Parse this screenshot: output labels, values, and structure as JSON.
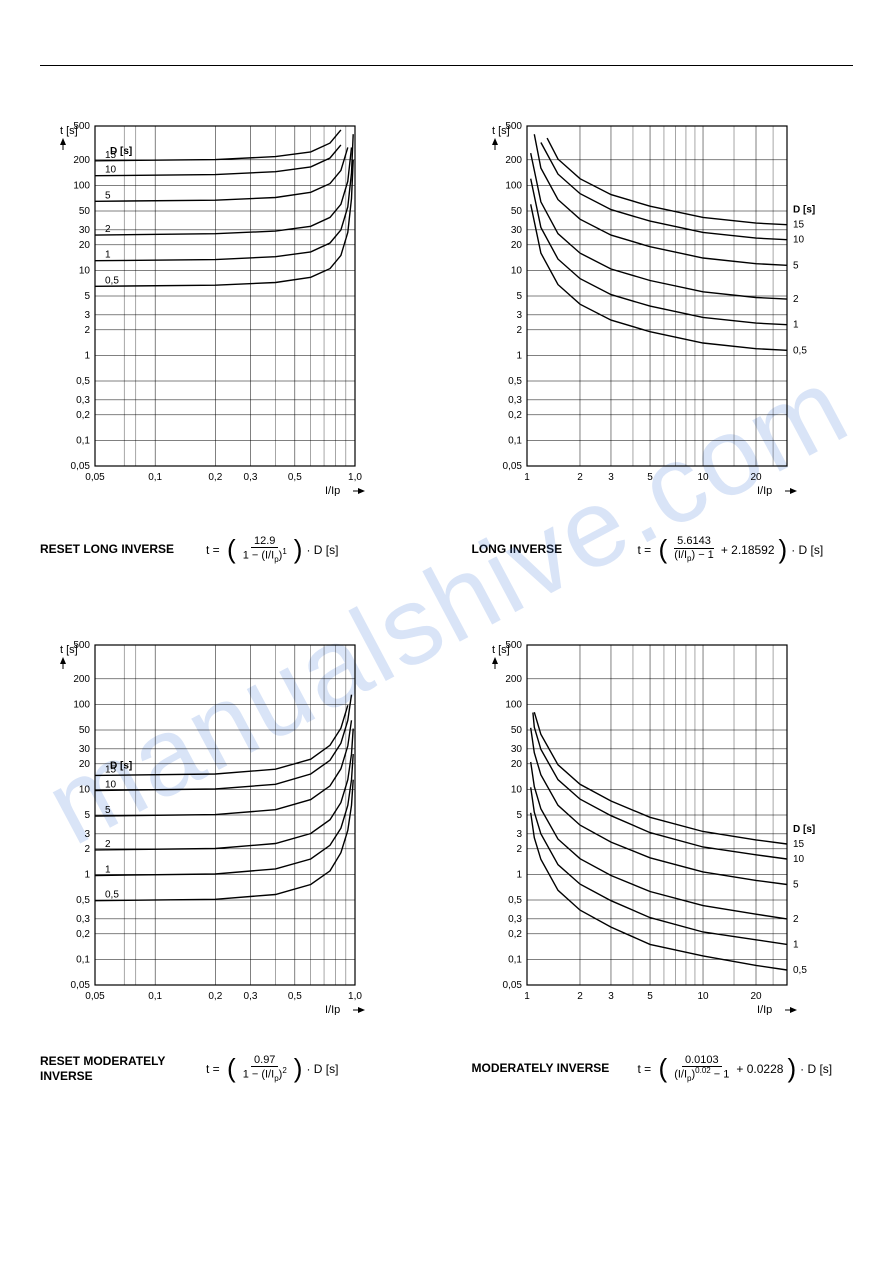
{
  "watermark": "manualshive.com",
  "common": {
    "y_ticks": [
      0.05,
      0.1,
      0.2,
      0.3,
      0.5,
      1,
      2,
      3,
      5,
      10,
      20,
      30,
      50,
      100,
      200,
      500
    ],
    "y_tick_labels": [
      "0,05",
      "0,1",
      "0,2",
      "0,3",
      "0,5",
      "1",
      "2",
      "3",
      "5",
      "10",
      "20",
      "30",
      "50",
      "100",
      "200",
      "500"
    ],
    "ylim": [
      0.05,
      500
    ],
    "y_axis_text": "t [s]",
    "d_header": "D [s]",
    "d_values": [
      "0,5",
      "1",
      "2",
      "5",
      "10",
      "15"
    ],
    "grid_color": "#000000",
    "bg": "#ffffff",
    "curve_width": 1.4
  },
  "reset_x": {
    "ticks": [
      0.05,
      0.1,
      0.2,
      0.3,
      0.5,
      1.0
    ],
    "labels": [
      "0,05",
      "0,1",
      "0,2",
      "0,3",
      "0,5",
      "1,0"
    ],
    "xlim": [
      0.05,
      1.0
    ],
    "axis_text": "I/Ip"
  },
  "fwd_x": {
    "ticks": [
      1,
      2,
      3,
      5,
      10,
      20
    ],
    "labels": [
      "1",
      "2",
      "3",
      "5",
      "10",
      "20"
    ],
    "xlim": [
      1,
      30
    ],
    "axis_text": "I/Ip"
  },
  "charts": [
    {
      "id": "reset-long-inverse",
      "title": "RESET LONG INVERSE",
      "xmode": "reset",
      "label_side": "left",
      "curves": [
        {
          "d": "0,5",
          "pts": [
            [
              0.05,
              6.5
            ],
            [
              0.2,
              6.7
            ],
            [
              0.4,
              7.2
            ],
            [
              0.6,
              8.3
            ],
            [
              0.75,
              10.5
            ],
            [
              0.85,
              15
            ],
            [
              0.92,
              28
            ],
            [
              0.96,
              70
            ],
            [
              0.98,
              200
            ]
          ]
        },
        {
          "d": "1",
          "pts": [
            [
              0.05,
              13
            ],
            [
              0.2,
              13.4
            ],
            [
              0.4,
              14.5
            ],
            [
              0.6,
              16.5
            ],
            [
              0.75,
              21
            ],
            [
              0.85,
              30
            ],
            [
              0.92,
              56
            ],
            [
              0.96,
              140
            ],
            [
              0.98,
              400
            ]
          ]
        },
        {
          "d": "2",
          "pts": [
            [
              0.05,
              26
            ],
            [
              0.2,
              27
            ],
            [
              0.4,
              29
            ],
            [
              0.6,
              33
            ],
            [
              0.75,
              42
            ],
            [
              0.85,
              60
            ],
            [
              0.92,
              112
            ],
            [
              0.96,
              280
            ]
          ]
        },
        {
          "d": "5",
          "pts": [
            [
              0.05,
              65
            ],
            [
              0.2,
              67
            ],
            [
              0.4,
              72
            ],
            [
              0.6,
              83
            ],
            [
              0.75,
              105
            ],
            [
              0.85,
              150
            ],
            [
              0.92,
              280
            ]
          ]
        },
        {
          "d": "10",
          "pts": [
            [
              0.05,
              130
            ],
            [
              0.2,
              134
            ],
            [
              0.4,
              145
            ],
            [
              0.6,
              165
            ],
            [
              0.75,
              210
            ],
            [
              0.85,
              300
            ]
          ]
        },
        {
          "d": "15",
          "pts": [
            [
              0.05,
              195
            ],
            [
              0.2,
              201
            ],
            [
              0.4,
              218
            ],
            [
              0.6,
              248
            ],
            [
              0.75,
              315
            ],
            [
              0.85,
              450
            ]
          ]
        }
      ],
      "formula": {
        "numerator": "12.9",
        "denominator_html": "1 − (I/I<sub>p</sub>)<sup>1</sup>",
        "constant": null
      }
    },
    {
      "id": "long-inverse",
      "title": "LONG INVERSE",
      "xmode": "fwd",
      "label_side": "right",
      "curves": [
        {
          "d": "0,5",
          "pts": [
            [
              1.05,
              60
            ],
            [
              1.2,
              16
            ],
            [
              1.5,
              6.8
            ],
            [
              2,
              4
            ],
            [
              3,
              2.6
            ],
            [
              5,
              1.9
            ],
            [
              10,
              1.4
            ],
            [
              20,
              1.2
            ],
            [
              30,
              1.15
            ]
          ]
        },
        {
          "d": "1",
          "pts": [
            [
              1.05,
              120
            ],
            [
              1.2,
              32
            ],
            [
              1.5,
              13.6
            ],
            [
              2,
              8
            ],
            [
              3,
              5.2
            ],
            [
              5,
              3.8
            ],
            [
              10,
              2.8
            ],
            [
              20,
              2.4
            ],
            [
              30,
              2.3
            ]
          ]
        },
        {
          "d": "2",
          "pts": [
            [
              1.05,
              240
            ],
            [
              1.2,
              64
            ],
            [
              1.5,
              27
            ],
            [
              2,
              16
            ],
            [
              3,
              10.4
            ],
            [
              5,
              7.6
            ],
            [
              10,
              5.6
            ],
            [
              20,
              4.8
            ],
            [
              30,
              4.6
            ]
          ]
        },
        {
          "d": "5",
          "pts": [
            [
              1.1,
              400
            ],
            [
              1.2,
              160
            ],
            [
              1.5,
              68
            ],
            [
              2,
              40
            ],
            [
              3,
              26
            ],
            [
              5,
              19
            ],
            [
              10,
              14
            ],
            [
              20,
              12
            ],
            [
              30,
              11.5
            ]
          ]
        },
        {
          "d": "10",
          "pts": [
            [
              1.2,
              320
            ],
            [
              1.5,
              136
            ],
            [
              2,
              80
            ],
            [
              3,
              52
            ],
            [
              5,
              38
            ],
            [
              10,
              28
            ],
            [
              20,
              24
            ],
            [
              30,
              23
            ]
          ]
        },
        {
          "d": "15",
          "pts": [
            [
              1.3,
              360
            ],
            [
              1.5,
              204
            ],
            [
              2,
              120
            ],
            [
              3,
              78
            ],
            [
              5,
              57
            ],
            [
              10,
              42
            ],
            [
              20,
              36
            ],
            [
              30,
              34.5
            ]
          ]
        }
      ],
      "formula": {
        "numerator": "5.6143",
        "denominator_html": "(I/I<sub>p</sub>) − 1",
        "constant": "2.18592"
      }
    },
    {
      "id": "reset-moderately-inverse",
      "title": "RESET MODERATELY INVERSE",
      "xmode": "reset",
      "label_side": "left",
      "curves": [
        {
          "d": "0,5",
          "pts": [
            [
              0.05,
              0.49
            ],
            [
              0.2,
              0.51
            ],
            [
              0.4,
              0.58
            ],
            [
              0.6,
              0.76
            ],
            [
              0.75,
              1.1
            ],
            [
              0.85,
              1.8
            ],
            [
              0.92,
              3.3
            ],
            [
              0.96,
              6.5
            ],
            [
              0.98,
              13
            ]
          ]
        },
        {
          "d": "1",
          "pts": [
            [
              0.05,
              0.97
            ],
            [
              0.2,
              1.01
            ],
            [
              0.4,
              1.16
            ],
            [
              0.6,
              1.52
            ],
            [
              0.75,
              2.2
            ],
            [
              0.85,
              3.5
            ],
            [
              0.92,
              6.5
            ],
            [
              0.96,
              13
            ],
            [
              0.98,
              26
            ]
          ]
        },
        {
          "d": "2",
          "pts": [
            [
              0.05,
              1.94
            ],
            [
              0.2,
              2.02
            ],
            [
              0.4,
              2.31
            ],
            [
              0.6,
              3.03
            ],
            [
              0.75,
              4.4
            ],
            [
              0.85,
              7
            ],
            [
              0.92,
              13
            ],
            [
              0.96,
              26
            ],
            [
              0.98,
              52
            ]
          ]
        },
        {
          "d": "5",
          "pts": [
            [
              0.05,
              4.86
            ],
            [
              0.2,
              5.05
            ],
            [
              0.4,
              5.77
            ],
            [
              0.6,
              7.58
            ],
            [
              0.75,
              11
            ],
            [
              0.85,
              17.5
            ],
            [
              0.92,
              32.5
            ],
            [
              0.96,
              65
            ]
          ]
        },
        {
          "d": "10",
          "pts": [
            [
              0.05,
              9.7
            ],
            [
              0.2,
              10.1
            ],
            [
              0.4,
              11.5
            ],
            [
              0.6,
              15.2
            ],
            [
              0.75,
              22
            ],
            [
              0.85,
              35
            ],
            [
              0.92,
              65
            ],
            [
              0.96,
              130
            ]
          ]
        },
        {
          "d": "15",
          "pts": [
            [
              0.05,
              14.6
            ],
            [
              0.2,
              15.2
            ],
            [
              0.4,
              17.3
            ],
            [
              0.6,
              22.7
            ],
            [
              0.75,
              33
            ],
            [
              0.85,
              52.5
            ],
            [
              0.92,
              97.5
            ]
          ]
        }
      ],
      "formula": {
        "numerator": "0.97",
        "denominator_html": "1 − (I/I<sub>p</sub>)<sup>2</sup>",
        "constant": null
      }
    },
    {
      "id": "moderately-inverse",
      "title": "MODERATELY INVERSE",
      "xmode": "fwd",
      "label_side": "right",
      "curves": [
        {
          "d": "0,5",
          "pts": [
            [
              1.05,
              5.3
            ],
            [
              1.1,
              2.7
            ],
            [
              1.2,
              1.5
            ],
            [
              1.5,
              0.65
            ],
            [
              2,
              0.38
            ],
            [
              3,
              0.24
            ],
            [
              5,
              0.15
            ],
            [
              10,
              0.11
            ],
            [
              20,
              0.085
            ],
            [
              30,
              0.075
            ]
          ]
        },
        {
          "d": "1",
          "pts": [
            [
              1.05,
              10.6
            ],
            [
              1.1,
              5.4
            ],
            [
              1.2,
              3
            ],
            [
              1.5,
              1.3
            ],
            [
              2,
              0.77
            ],
            [
              3,
              0.49
            ],
            [
              5,
              0.31
            ],
            [
              10,
              0.21
            ],
            [
              20,
              0.17
            ],
            [
              30,
              0.15
            ]
          ]
        },
        {
          "d": "2",
          "pts": [
            [
              1.05,
              21
            ],
            [
              1.1,
              10.8
            ],
            [
              1.2,
              5.9
            ],
            [
              1.5,
              2.6
            ],
            [
              2,
              1.53
            ],
            [
              3,
              0.97
            ],
            [
              5,
              0.63
            ],
            [
              10,
              0.43
            ],
            [
              20,
              0.34
            ],
            [
              30,
              0.3
            ]
          ]
        },
        {
          "d": "5",
          "pts": [
            [
              1.05,
              53
            ],
            [
              1.1,
              27
            ],
            [
              1.2,
              14.8
            ],
            [
              1.5,
              6.5
            ],
            [
              2,
              3.8
            ],
            [
              3,
              2.4
            ],
            [
              5,
              1.57
            ],
            [
              10,
              1.07
            ],
            [
              20,
              0.85
            ],
            [
              30,
              0.76
            ]
          ]
        },
        {
          "d": "10",
          "pts": [
            [
              1.08,
              80
            ],
            [
              1.1,
              54
            ],
            [
              1.2,
              29.6
            ],
            [
              1.5,
              13
            ],
            [
              2,
              7.7
            ],
            [
              3,
              4.9
            ],
            [
              5,
              3.1
            ],
            [
              10,
              2.1
            ],
            [
              20,
              1.7
            ],
            [
              30,
              1.52
            ]
          ]
        },
        {
          "d": "15",
          "pts": [
            [
              1.1,
              81
            ],
            [
              1.2,
              44.4
            ],
            [
              1.5,
              19.5
            ],
            [
              2,
              11.5
            ],
            [
              3,
              7.3
            ],
            [
              5,
              4.7
            ],
            [
              10,
              3.2
            ],
            [
              20,
              2.55
            ],
            [
              30,
              2.28
            ]
          ]
        }
      ],
      "formula": {
        "numerator": "0.0103",
        "denominator_html": "(I/I<sub>p</sub>)<sup>0.02</sup> − 1",
        "constant": "0.0228"
      }
    }
  ]
}
